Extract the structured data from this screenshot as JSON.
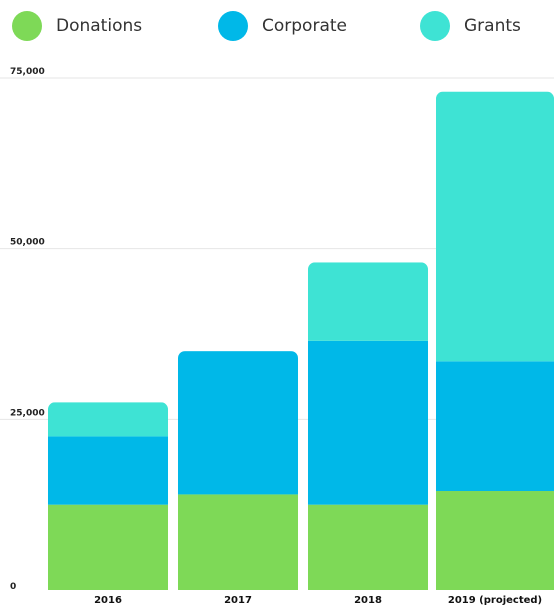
{
  "chart_data": {
    "type": "bar",
    "stacked": true,
    "categories": [
      "2016",
      "2017",
      "2018",
      "2019 (projected)"
    ],
    "series": [
      {
        "name": "Donations",
        "color": "#7ed957",
        "values": [
          12500,
          14000,
          12500,
          14500
        ]
      },
      {
        "name": "Corporate",
        "color": "#00b8e8",
        "values": [
          10000,
          21000,
          24000,
          19000
        ]
      },
      {
        "name": "Grants",
        "color": "#3ee3d4",
        "values": [
          5000,
          0,
          11500,
          39500
        ]
      }
    ],
    "ylim": [
      0,
      75000
    ],
    "yticks": [
      "0",
      "25,000",
      "50,000",
      "75,000"
    ],
    "ytick_values": [
      0,
      25000,
      50000,
      75000
    ],
    "grid": true,
    "legend_position": "top"
  }
}
